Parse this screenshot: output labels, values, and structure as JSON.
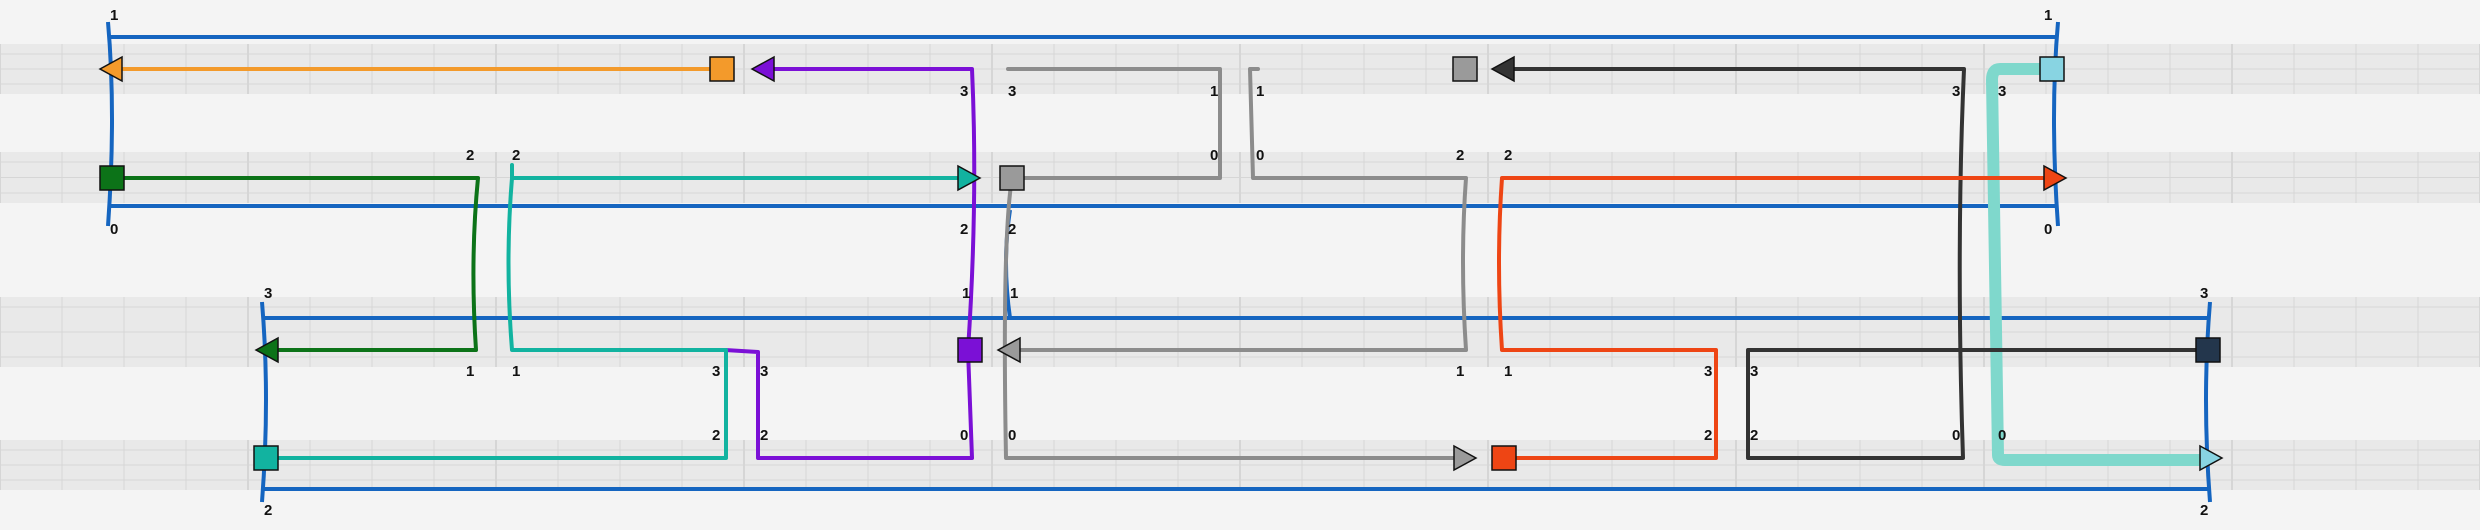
{
  "colors": {
    "background": "#f4f4f4",
    "grid_band": "#e9e9e9",
    "grid_line": "#d6d6d6",
    "frame_blue": "#1565c0",
    "orange": "#f39a2b",
    "purple": "#7b10d6",
    "gray": "#8c8c8c",
    "dark": "#333333",
    "light_teal": "#7fd8cc",
    "green": "#0c7318",
    "teal": "#12b3a0",
    "red_orange": "#ee4514",
    "navy": "#23364c",
    "square_gray": "#9a9a9a",
    "square_light_blue": "#88d4e2"
  },
  "labels": {
    "top_left_top": "1",
    "top_right_top": "1",
    "top_left_bottom": "0",
    "top_right_bottom": "0",
    "bottom_left_top": "3",
    "bottom_right_top": "3",
    "bottom_left_bottom": "2",
    "bottom_right_bottom": "2",
    "r1_purple": "3",
    "r1_gray_a_left": "3",
    "r1_gray_a_right": "1",
    "r1_gray_b_left": "1",
    "r1_dark_a": "3",
    "r1_teal_right": "3",
    "r2_green": "2",
    "r2_teal": "2",
    "r2_gray_a_right": "0",
    "r2_gray_b_left": "0",
    "r2_gray_b_right": "2",
    "r2_red": "2",
    "r2b_purple": "2",
    "r2b_gray": "2",
    "r3a_purple": "1",
    "r3a_gray": "1",
    "r3_green": "1",
    "r3_teal": "1",
    "r3_teal_right": "3",
    "r3_purple_left": "3",
    "r3_gray_right": "1",
    "r3_red_left": "1",
    "r3_red_right": "3",
    "r3_dark_left": "3",
    "r4_teal_right": "2",
    "r4_purple_left": "2",
    "r4_purple_right": "0",
    "r4_gray_left": "0",
    "r4_red_right": "2",
    "r4_dark_left": "2",
    "r4_dark_right": "0",
    "r4_lteal_left": "0"
  }
}
